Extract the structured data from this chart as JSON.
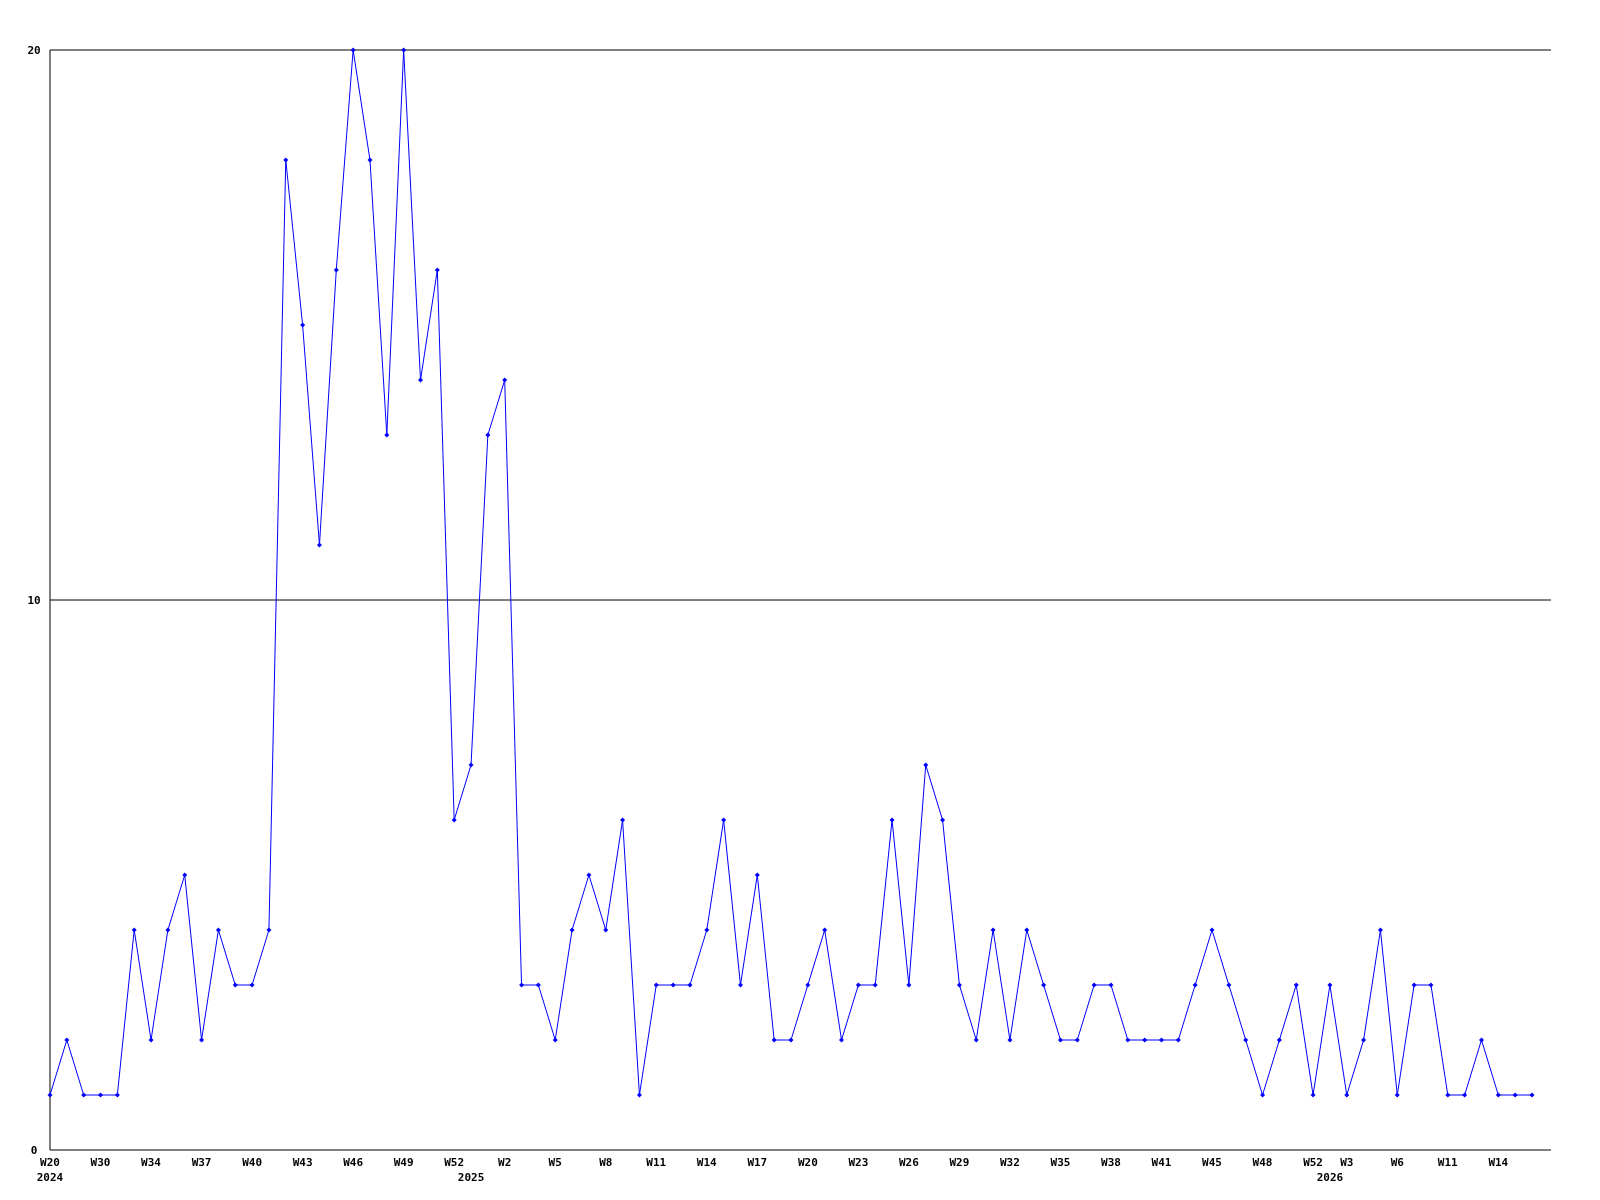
{
  "chart_data": {
    "type": "line",
    "categories": [
      "W20\n2024",
      null,
      null,
      "W30",
      null,
      null,
      "W34",
      null,
      null,
      "W37",
      null,
      null,
      "W40",
      null,
      null,
      "W43",
      null,
      null,
      "W46",
      null,
      null,
      "W49",
      null,
      null,
      "W52",
      "\n2025",
      null,
      "W2",
      null,
      null,
      "W5",
      null,
      null,
      "W8",
      null,
      null,
      "W11",
      null,
      null,
      "W14",
      null,
      null,
      "W17",
      null,
      null,
      "W20",
      null,
      null,
      "W23",
      null,
      null,
      "W26",
      null,
      null,
      "W29",
      null,
      null,
      "W32",
      null,
      null,
      "W35",
      null,
      null,
      "W38",
      null,
      null,
      "W41",
      null,
      null,
      "W45",
      null,
      null,
      "W48",
      null,
      null,
      "W52",
      "\n2026",
      "W3",
      null,
      null,
      "W6",
      null,
      null,
      "W11",
      null,
      null,
      "W14",
      null,
      null
    ],
    "series": [
      {
        "color": "#0000ff",
        "values": [
          1,
          2,
          1,
          1,
          1,
          4,
          2,
          4,
          5,
          2,
          4,
          3,
          3,
          4,
          18,
          15,
          11,
          16,
          20,
          18,
          13,
          20,
          14,
          16,
          6,
          7,
          13,
          14,
          3,
          3,
          2,
          4,
          5,
          4,
          6,
          1,
          3,
          3,
          3,
          4,
          6,
          3,
          5,
          2,
          2,
          3,
          4,
          2,
          3,
          3,
          6,
          3,
          7,
          6,
          3,
          2,
          4,
          2,
          4,
          3,
          2,
          2,
          3,
          3,
          2,
          2,
          2,
          2,
          3,
          4,
          3,
          2,
          1,
          2,
          3,
          1,
          3,
          1,
          2,
          4,
          1,
          3,
          3,
          1,
          1,
          2,
          1,
          1,
          1
        ]
      }
    ],
    "ylim": [
      0,
      20
    ],
    "yticks": [
      0,
      10,
      20
    ],
    "grid": "y",
    "marker": "diamond",
    "line_style": "solid"
  }
}
